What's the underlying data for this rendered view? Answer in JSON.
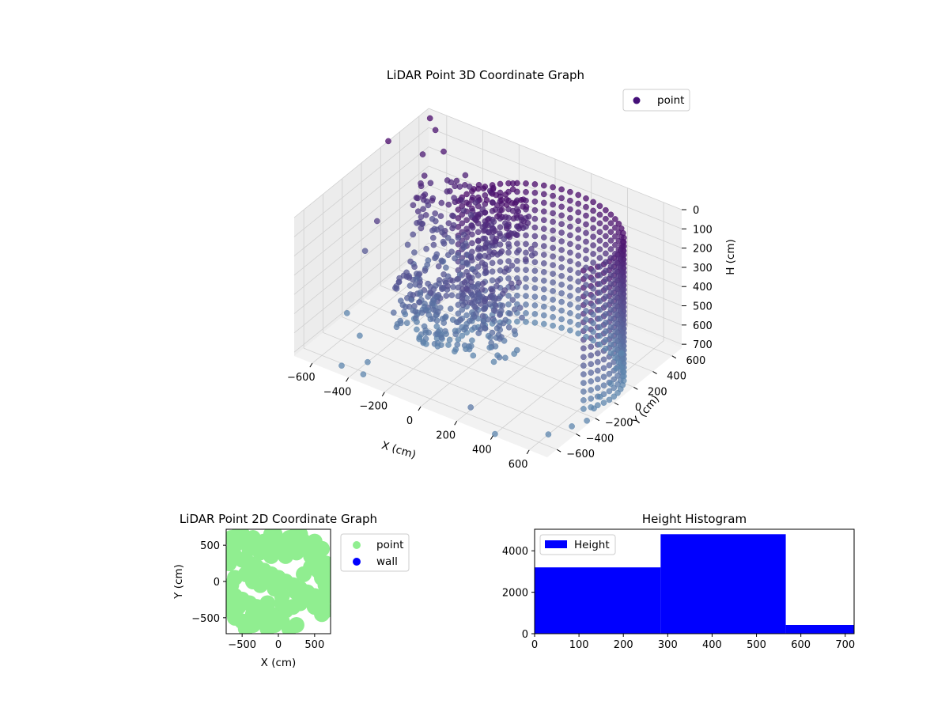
{
  "chart_data": [
    {
      "type": "scatter",
      "dimensions": 3,
      "title": "LiDAR Point 3D Coordinate Graph",
      "xlabel": "X (cm)",
      "ylabel": "Y (cm)",
      "zlabel": "H (cm)",
      "x_ticks": [
        "−600",
        "−400",
        "−200",
        "0",
        "200",
        "400",
        "600"
      ],
      "y_ticks": [
        "−600",
        "−400",
        "−200",
        "0",
        "200",
        "400",
        "600"
      ],
      "z_ticks": [
        "0",
        "100",
        "200",
        "300",
        "400",
        "500",
        "600",
        "700"
      ],
      "xlim": [
        -700,
        700
      ],
      "ylim": [
        -700,
        700
      ],
      "zlim": [
        0,
        720
      ],
      "z_inverted": true,
      "grid": true,
      "legend": {
        "position": "upper-right",
        "entries": [
          {
            "label": "point",
            "color": "#440f78"
          }
        ]
      },
      "colors": {
        "point_dark": "#4b0b6b",
        "point_light": "#5e86ad"
      },
      "series": [
        {
          "name": "point",
          "points": [
            [
              -700,
              280,
              0
            ],
            [
              -650,
              620,
              0
            ],
            [
              -620,
              620,
              50
            ],
            [
              -600,
              450,
              100
            ],
            [
              -500,
              480,
              60
            ],
            [
              -640,
              50,
              300
            ],
            [
              -680,
              0,
              450
            ],
            [
              -700,
              -150,
              720
            ],
            [
              -550,
              -300,
              720
            ],
            [
              -400,
              -500,
              720
            ],
            [
              -480,
              -620,
              720
            ],
            [
              -360,
              -620,
              720
            ],
            [
              250,
              -650,
              650
            ],
            [
              400,
              -680,
              720
            ],
            [
              600,
              -500,
              720
            ],
            [
              650,
              -350,
              720
            ],
            [
              680,
              -250,
              720
            ],
            [
              650,
              -120,
              720
            ],
            [
              620,
              0,
              720
            ],
            [
              600,
              150,
              720
            ],
            [
              550,
              300,
              720
            ],
            [
              500,
              450,
              720
            ],
            [
              -350,
              350,
              400
            ],
            [
              -300,
              300,
              400
            ],
            [
              -250,
              250,
              450
            ],
            [
              -200,
              200,
              380
            ],
            [
              -150,
              150,
              420
            ],
            [
              -350,
              0,
              600
            ],
            [
              -300,
              -50,
              620
            ],
            [
              -250,
              -100,
              600
            ],
            [
              -200,
              -150,
              640
            ],
            [
              -150,
              -200,
              620
            ],
            [
              -450,
              100,
              550
            ],
            [
              -400,
              50,
              580
            ],
            [
              -300,
              150,
              500
            ],
            [
              -100,
              100,
              500
            ],
            [
              -50,
              50,
              600
            ],
            [
              0,
              0,
              550
            ],
            [
              50,
              -50,
              580
            ],
            [
              -200,
              0,
              500
            ],
            [
              -100,
              -100,
              550
            ],
            [
              -550,
              200,
              450
            ]
          ],
          "wall_arcs": [
            {
              "center": [
                250,
                50
              ],
              "radius": 420,
              "angle_deg": [
                -30,
                190
              ],
              "h": [
                0,
                720
              ]
            }
          ],
          "clusters": [
            {
              "center": [
                -70,
                250
              ],
              "h": [
                0,
                400
              ],
              "count": 120
            },
            {
              "center": [
                -420,
                330
              ],
              "h": [
                120,
                600
              ],
              "count": 90
            },
            {
              "center": [
                -300,
                -80
              ],
              "h": [
                400,
                720
              ],
              "count": 140
            },
            {
              "center": [
                0,
                0
              ],
              "h": [
                350,
                720
              ],
              "count": 120
            }
          ]
        }
      ]
    },
    {
      "type": "scatter",
      "dimensions": 2,
      "title": "LiDAR Point 2D Coordinate Graph",
      "xlabel": "X (cm)",
      "ylabel": "Y (cm)",
      "x_ticks": [
        "−500",
        "0",
        "500"
      ],
      "y_ticks": [
        "500",
        "0",
        "−500"
      ],
      "xlim": [
        -720,
        720
      ],
      "ylim": [
        -720,
        720
      ],
      "legend": {
        "position": "outside-right",
        "entries": [
          {
            "label": "point",
            "color": "#90ee90"
          },
          {
            "label": "wall",
            "color": "#0000ff"
          }
        ]
      },
      "series": [
        {
          "name": "point",
          "color": "#90ee90",
          "points": [
            [
              -650,
              600
            ],
            [
              -600,
              500
            ],
            [
              -500,
              650
            ],
            [
              -450,
              550
            ],
            [
              -400,
              450
            ],
            [
              -350,
              600
            ],
            [
              -300,
              500
            ],
            [
              -250,
              400
            ],
            [
              -200,
              550
            ],
            [
              -150,
              450
            ],
            [
              -100,
              350
            ],
            [
              -50,
              650
            ],
            [
              0,
              550
            ],
            [
              50,
              450
            ],
            [
              100,
              350
            ],
            [
              150,
              600
            ],
            [
              200,
              500
            ],
            [
              250,
              400
            ],
            [
              300,
              650
            ],
            [
              350,
              550
            ],
            [
              400,
              450
            ],
            [
              450,
              350
            ],
            [
              500,
              250
            ],
            [
              550,
              150
            ],
            [
              600,
              50
            ],
            [
              650,
              -50
            ],
            [
              -600,
              350
            ],
            [
              -650,
              400
            ],
            [
              -500,
              300
            ],
            [
              -400,
              250
            ],
            [
              -300,
              200
            ],
            [
              -200,
              150
            ],
            [
              -100,
              100
            ],
            [
              0,
              50
            ],
            [
              100,
              0
            ],
            [
              200,
              -50
            ],
            [
              300,
              -100
            ],
            [
              400,
              -150
            ],
            [
              500,
              -200
            ],
            [
              600,
              -300
            ],
            [
              650,
              -400
            ],
            [
              -650,
              -150
            ],
            [
              -600,
              -200
            ],
            [
              -500,
              -250
            ],
            [
              -400,
              -300
            ],
            [
              -300,
              -350
            ],
            [
              -200,
              -400
            ],
            [
              -100,
              -450
            ],
            [
              0,
              -500
            ],
            [
              100,
              -400
            ],
            [
              200,
              -350
            ],
            [
              300,
              -300
            ],
            [
              400,
              -250
            ],
            [
              500,
              -350
            ],
            [
              600,
              -450
            ],
            [
              -650,
              -400
            ],
            [
              -600,
              -500
            ],
            [
              -500,
              -550
            ],
            [
              -450,
              -650
            ],
            [
              -350,
              -600
            ],
            [
              -250,
              -550
            ],
            [
              -150,
              -650
            ],
            [
              -50,
              -600
            ],
            [
              50,
              -550
            ],
            [
              150,
              -650
            ],
            [
              250,
              -600
            ],
            [
              -550,
              -350
            ],
            [
              -350,
              -450
            ],
            [
              -150,
              -300
            ],
            [
              50,
              -300
            ],
            [
              250,
              -150
            ],
            [
              350,
              100
            ],
            [
              450,
              200
            ],
            [
              550,
              300
            ],
            [
              600,
              450
            ],
            [
              -450,
              100
            ],
            [
              -350,
              0
            ],
            [
              -250,
              -50
            ],
            [
              -150,
              0
            ],
            [
              -50,
              -100
            ],
            [
              50,
              -200
            ],
            [
              -600,
              50
            ],
            [
              -650,
              -50
            ],
            [
              -550,
              650
            ],
            [
              -100,
              650
            ],
            [
              250,
              650
            ],
            [
              500,
              550
            ],
            [
              650,
              250
            ],
            [
              680,
              100
            ],
            [
              680,
              -200
            ],
            [
              -680,
              250
            ],
            [
              -680,
              -250
            ]
          ]
        },
        {
          "name": "wall",
          "color": "#0000ff",
          "points": []
        }
      ]
    },
    {
      "type": "bar",
      "title": "Height Histogram",
      "xlabel": "",
      "ylabel": "",
      "x_ticks": [
        "0",
        "100",
        "200",
        "300",
        "400",
        "500",
        "600",
        "700"
      ],
      "y_ticks": [
        "0",
        "2000",
        "4000"
      ],
      "xlim": [
        0,
        720
      ],
      "ylim": [
        0,
        5040
      ],
      "legend": {
        "position": "upper-left",
        "entries": [
          {
            "label": "Height",
            "color": "#0000ff"
          }
        ]
      },
      "series": [
        {
          "name": "Height",
          "color": "#0000ff",
          "bins": [
            {
              "start": 0,
              "end": 284,
              "count": 3200
            },
            {
              "start": 284,
              "end": 566,
              "count": 4800
            },
            {
              "start": 566,
              "end": 720,
              "count": 420
            }
          ]
        }
      ]
    }
  ]
}
